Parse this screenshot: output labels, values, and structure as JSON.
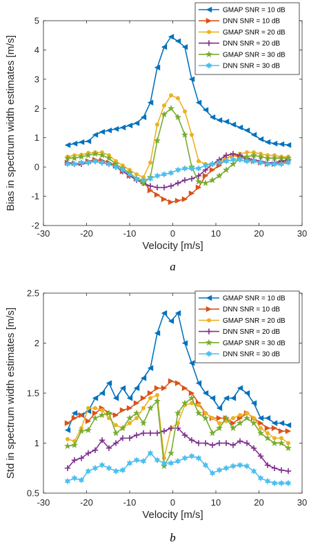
{
  "chart_data": [
    {
      "type": "line",
      "caption": "a",
      "xlabel": "Velocity [m/s]",
      "ylabel": "Bias in spectrum width estimates [m/s]",
      "xlim": [
        -30,
        30
      ],
      "ylim": [
        -2,
        5
      ],
      "xticks": [
        -30,
        -20,
        -10,
        0,
        10,
        20,
        30
      ],
      "yticks": [
        -2,
        -1,
        0,
        1,
        2,
        3,
        4,
        5
      ],
      "grid": false,
      "legend_position": "top-right",
      "series": [
        {
          "name": "GMAP SNR = 10 dB",
          "color": "#0072BD",
          "marker": "triangle-left",
          "x": [
            -24.4,
            -22.8,
            -21.2,
            -19.6,
            -18.0,
            -16.4,
            -14.8,
            -13.2,
            -11.6,
            -10.0,
            -8.4,
            -6.8,
            -5.2,
            -3.6,
            -2.0,
            -0.4,
            1.2,
            2.8,
            4.4,
            6.0,
            7.6,
            9.2,
            10.8,
            12.4,
            14.0,
            15.6,
            17.2,
            18.8,
            20.4,
            22.0,
            23.6,
            25.2,
            26.8
          ],
          "y": [
            0.75,
            0.8,
            0.85,
            0.88,
            1.1,
            1.2,
            1.25,
            1.3,
            1.35,
            1.42,
            1.5,
            1.7,
            2.2,
            3.4,
            4.1,
            4.45,
            4.3,
            4.1,
            3.0,
            2.2,
            1.95,
            1.7,
            1.6,
            1.55,
            1.45,
            1.35,
            1.25,
            1.1,
            0.95,
            0.85,
            0.8,
            0.78,
            0.75
          ]
        },
        {
          "name": "DNN SNR = 10 dB",
          "color": "#D95319",
          "marker": "triangle-right",
          "x": [
            -24.4,
            -22.8,
            -21.2,
            -19.6,
            -18.0,
            -16.4,
            -14.8,
            -13.2,
            -11.6,
            -10.0,
            -8.4,
            -6.8,
            -5.2,
            -3.6,
            -2.0,
            -0.4,
            1.2,
            2.8,
            4.4,
            6.0,
            7.6,
            9.2,
            10.8,
            12.4,
            14.0,
            15.6,
            17.2,
            18.8,
            20.4,
            22.0,
            23.6,
            25.2,
            26.8
          ],
          "y": [
            0.15,
            0.12,
            0.12,
            0.2,
            0.25,
            0.22,
            0.15,
            0.05,
            -0.15,
            -0.3,
            -0.4,
            -0.5,
            -0.8,
            -0.95,
            -1.1,
            -1.2,
            -1.15,
            -1.1,
            -0.9,
            -0.7,
            -0.3,
            -0.1,
            0.05,
            0.3,
            0.4,
            0.35,
            0.25,
            0.2,
            0.15,
            0.1,
            0.1,
            0.15,
            0.2
          ]
        },
        {
          "name": "GMAP SNR = 20 dB",
          "color": "#EDB120",
          "marker": "circle",
          "x": [
            -24.4,
            -22.8,
            -21.2,
            -19.6,
            -18.0,
            -16.4,
            -14.8,
            -13.2,
            -11.6,
            -10.0,
            -8.4,
            -6.8,
            -5.2,
            -3.6,
            -2.0,
            -0.4,
            1.2,
            2.8,
            4.4,
            6.0,
            7.6,
            9.2,
            10.8,
            12.4,
            14.0,
            15.6,
            17.2,
            18.8,
            20.4,
            22.0,
            23.6,
            25.2,
            26.8
          ],
          "y": [
            0.35,
            0.4,
            0.42,
            0.48,
            0.5,
            0.5,
            0.4,
            0.2,
            0.05,
            -0.1,
            -0.25,
            -0.35,
            0.15,
            1.45,
            2.1,
            2.45,
            2.35,
            1.9,
            1.1,
            0.2,
            0.1,
            0.1,
            0.2,
            0.3,
            0.4,
            0.45,
            0.5,
            0.5,
            0.45,
            0.4,
            0.4,
            0.35,
            0.35
          ]
        },
        {
          "name": "DNN SNR = 20 dB",
          "color": "#7E2F8E",
          "marker": "plus",
          "x": [
            -24.4,
            -22.8,
            -21.2,
            -19.6,
            -18.0,
            -16.4,
            -14.8,
            -13.2,
            -11.6,
            -10.0,
            -8.4,
            -6.8,
            -5.2,
            -3.6,
            -2.0,
            -0.4,
            1.2,
            2.8,
            4.4,
            6.0,
            7.6,
            9.2,
            10.8,
            12.4,
            14.0,
            15.6,
            17.2,
            18.8,
            20.4,
            22.0,
            23.6,
            25.2,
            26.8
          ],
          "y": [
            0.15,
            0.1,
            0.1,
            0.15,
            0.2,
            0.15,
            0.1,
            0.0,
            -0.15,
            -0.3,
            -0.45,
            -0.55,
            -0.65,
            -0.7,
            -0.7,
            -0.65,
            -0.55,
            -0.45,
            -0.4,
            -0.3,
            -0.1,
            0.1,
            0.25,
            0.4,
            0.45,
            0.4,
            0.3,
            0.25,
            0.2,
            0.15,
            0.15,
            0.2,
            0.25
          ]
        },
        {
          "name": "GMAP SNR = 30 dB",
          "color": "#77AC30",
          "marker": "star",
          "x": [
            -24.4,
            -22.8,
            -21.2,
            -19.6,
            -18.0,
            -16.4,
            -14.8,
            -13.2,
            -11.6,
            -10.0,
            -8.4,
            -6.8,
            -5.2,
            -3.6,
            -2.0,
            -0.4,
            1.2,
            2.8,
            4.4,
            6.0,
            7.6,
            9.2,
            10.8,
            12.4,
            14.0,
            15.6,
            17.2,
            18.8,
            20.4,
            22.0,
            23.6,
            25.2,
            26.8
          ],
          "y": [
            0.3,
            0.3,
            0.35,
            0.4,
            0.45,
            0.4,
            0.3,
            0.1,
            -0.05,
            -0.2,
            -0.4,
            -0.55,
            -0.35,
            0.9,
            1.8,
            2.0,
            1.7,
            1.1,
            0.0,
            -0.5,
            -0.55,
            -0.45,
            -0.3,
            -0.1,
            0.1,
            0.3,
            0.35,
            0.4,
            0.35,
            0.3,
            0.3,
            0.3,
            0.3
          ]
        },
        {
          "name": "DNN SNR = 30 dB",
          "color": "#4DBEEE",
          "marker": "hexagram",
          "x": [
            -24.4,
            -22.8,
            -21.2,
            -19.6,
            -18.0,
            -16.4,
            -14.8,
            -13.2,
            -11.6,
            -10.0,
            -8.4,
            -6.8,
            -5.2,
            -3.6,
            -2.0,
            -0.4,
            1.2,
            2.8,
            4.4,
            6.0,
            7.6,
            9.2,
            10.8,
            12.4,
            14.0,
            15.6,
            17.2,
            18.8,
            20.4,
            22.0,
            23.6,
            25.2,
            26.8
          ],
          "y": [
            0.1,
            0.1,
            0.15,
            0.15,
            0.2,
            0.15,
            0.1,
            0.0,
            -0.1,
            -0.25,
            -0.4,
            -0.45,
            -0.4,
            -0.3,
            -0.25,
            -0.2,
            -0.1,
            -0.05,
            -0.05,
            -0.05,
            0.05,
            0.1,
            0.15,
            0.2,
            0.25,
            0.25,
            0.2,
            0.2,
            0.15,
            0.1,
            0.1,
            0.1,
            0.15
          ]
        }
      ]
    },
    {
      "type": "line",
      "caption": "b",
      "xlabel": "Velocity [m/s]",
      "ylabel": "Std in spectrum width estimates [m/s]",
      "xlim": [
        -30,
        30
      ],
      "ylim": [
        0.5,
        2.5
      ],
      "xticks": [
        -30,
        -20,
        -10,
        0,
        10,
        20,
        30
      ],
      "yticks": [
        0.5,
        1,
        1.5,
        2,
        2.5
      ],
      "grid": false,
      "legend_position": "top-right",
      "series": [
        {
          "name": "GMAP SNR = 10 dB",
          "color": "#0072BD",
          "marker": "triangle-left",
          "x": [
            -24.4,
            -22.8,
            -21.2,
            -19.6,
            -18.0,
            -16.4,
            -14.8,
            -13.2,
            -11.6,
            -10.0,
            -8.4,
            -6.8,
            -5.2,
            -3.6,
            -2.0,
            -0.4,
            1.2,
            2.8,
            4.4,
            6.0,
            7.6,
            9.2,
            10.8,
            12.4,
            14.0,
            15.6,
            17.2,
            18.8,
            20.4,
            22.0,
            23.6,
            25.2,
            26.8
          ],
          "y": [
            1.13,
            1.3,
            1.28,
            1.32,
            1.45,
            1.5,
            1.6,
            1.45,
            1.55,
            1.45,
            1.55,
            1.65,
            1.75,
            2.1,
            2.3,
            2.22,
            2.3,
            2.0,
            1.8,
            1.6,
            1.5,
            1.45,
            1.35,
            1.45,
            1.45,
            1.55,
            1.5,
            1.4,
            1.25,
            1.25,
            1.2,
            1.2,
            1.18
          ]
        },
        {
          "name": "DNN SNR = 10 dB",
          "color": "#D95319",
          "marker": "triangle-right",
          "x": [
            -24.4,
            -22.8,
            -21.2,
            -19.6,
            -18.0,
            -16.4,
            -14.8,
            -13.2,
            -11.6,
            -10.0,
            -8.4,
            -6.8,
            -5.2,
            -3.6,
            -2.0,
            -0.4,
            1.2,
            2.8,
            4.4,
            6.0,
            7.6,
            9.2,
            10.8,
            12.4,
            14.0,
            15.6,
            17.2,
            18.8,
            20.4,
            22.0,
            23.6,
            25.2,
            26.8
          ],
          "y": [
            1.2,
            1.25,
            1.28,
            1.22,
            1.3,
            1.35,
            1.3,
            1.28,
            1.33,
            1.35,
            1.4,
            1.45,
            1.5,
            1.55,
            1.55,
            1.62,
            1.6,
            1.55,
            1.5,
            1.4,
            1.3,
            1.25,
            1.25,
            1.25,
            1.2,
            1.25,
            1.3,
            1.25,
            1.2,
            1.15,
            1.15,
            1.12,
            1.12
          ]
        },
        {
          "name": "GMAP SNR = 20 dB",
          "color": "#EDB120",
          "marker": "circle",
          "x": [
            -24.4,
            -22.8,
            -21.2,
            -19.6,
            -18.0,
            -16.4,
            -14.8,
            -13.2,
            -11.6,
            -10.0,
            -8.4,
            -6.8,
            -5.2,
            -3.6,
            -2.0,
            -0.4,
            1.2,
            2.8,
            4.4,
            6.0,
            7.6,
            9.2,
            10.8,
            12.4,
            14.0,
            15.6,
            17.2,
            18.8,
            20.4,
            22.0,
            23.6,
            25.2,
            26.8
          ],
          "y": [
            1.04,
            1.02,
            1.15,
            1.35,
            1.35,
            1.33,
            1.25,
            1.18,
            1.15,
            1.2,
            1.25,
            1.35,
            1.45,
            1.48,
            0.85,
            1.15,
            1.2,
            1.38,
            1.4,
            1.38,
            1.3,
            1.25,
            1.2,
            1.22,
            1.25,
            1.28,
            1.3,
            1.25,
            1.15,
            1.1,
            1.05,
            1.05,
            1.0
          ]
        },
        {
          "name": "DNN SNR = 20 dB",
          "color": "#7E2F8E",
          "marker": "plus",
          "x": [
            -24.4,
            -22.8,
            -21.2,
            -19.6,
            -18.0,
            -16.4,
            -14.8,
            -13.2,
            -11.6,
            -10.0,
            -8.4,
            -6.8,
            -5.2,
            -3.6,
            -2.0,
            -0.4,
            1.2,
            2.8,
            4.4,
            6.0,
            7.6,
            9.2,
            10.8,
            12.4,
            14.0,
            15.6,
            17.2,
            18.8,
            20.4,
            22.0,
            23.6,
            25.2,
            26.8
          ],
          "y": [
            0.75,
            0.83,
            0.85,
            0.9,
            0.93,
            1.03,
            0.95,
            1.0,
            1.05,
            1.05,
            1.08,
            1.1,
            1.1,
            1.1,
            1.12,
            1.15,
            1.15,
            1.08,
            1.03,
            1.0,
            1.0,
            0.98,
            1.0,
            1.0,
            0.98,
            1.02,
            1.0,
            0.95,
            0.87,
            0.78,
            0.75,
            0.73,
            0.72
          ]
        },
        {
          "name": "GMAP SNR = 30 dB",
          "color": "#77AC30",
          "marker": "star",
          "x": [
            -24.4,
            -22.8,
            -21.2,
            -19.6,
            -18.0,
            -16.4,
            -14.8,
            -13.2,
            -11.6,
            -10.0,
            -8.4,
            -6.8,
            -5.2,
            -3.6,
            -2.0,
            -0.4,
            1.2,
            2.8,
            4.4,
            6.0,
            7.6,
            9.2,
            10.8,
            12.4,
            14.0,
            15.6,
            17.2,
            18.8,
            20.4,
            22.0,
            23.6,
            25.2,
            26.8
          ],
          "y": [
            0.97,
            0.98,
            1.12,
            1.13,
            1.25,
            1.28,
            1.3,
            1.1,
            1.15,
            1.25,
            1.3,
            1.2,
            1.35,
            1.42,
            0.77,
            0.9,
            1.3,
            1.4,
            1.45,
            1.3,
            1.25,
            1.1,
            1.15,
            1.25,
            1.15,
            1.2,
            1.25,
            1.2,
            1.1,
            1.05,
            1.0,
            1.0,
            0.95
          ]
        },
        {
          "name": "DNN SNR = 30 dB",
          "color": "#4DBEEE",
          "marker": "hexagram",
          "x": [
            -24.4,
            -22.8,
            -21.2,
            -19.6,
            -18.0,
            -16.4,
            -14.8,
            -13.2,
            -11.6,
            -10.0,
            -8.4,
            -6.8,
            -5.2,
            -3.6,
            -2.0,
            -0.4,
            1.2,
            2.8,
            4.4,
            6.0,
            7.6,
            9.2,
            10.8,
            12.4,
            14.0,
            15.6,
            17.2,
            18.8,
            20.4,
            22.0,
            23.6,
            25.2,
            26.8
          ],
          "y": [
            0.62,
            0.65,
            0.63,
            0.72,
            0.75,
            0.78,
            0.75,
            0.72,
            0.73,
            0.8,
            0.83,
            0.82,
            0.9,
            0.83,
            0.8,
            0.8,
            0.82,
            0.85,
            0.87,
            0.85,
            0.78,
            0.7,
            0.73,
            0.75,
            0.77,
            0.78,
            0.77,
            0.72,
            0.65,
            0.62,
            0.6,
            0.6,
            0.6
          ]
        }
      ]
    }
  ]
}
